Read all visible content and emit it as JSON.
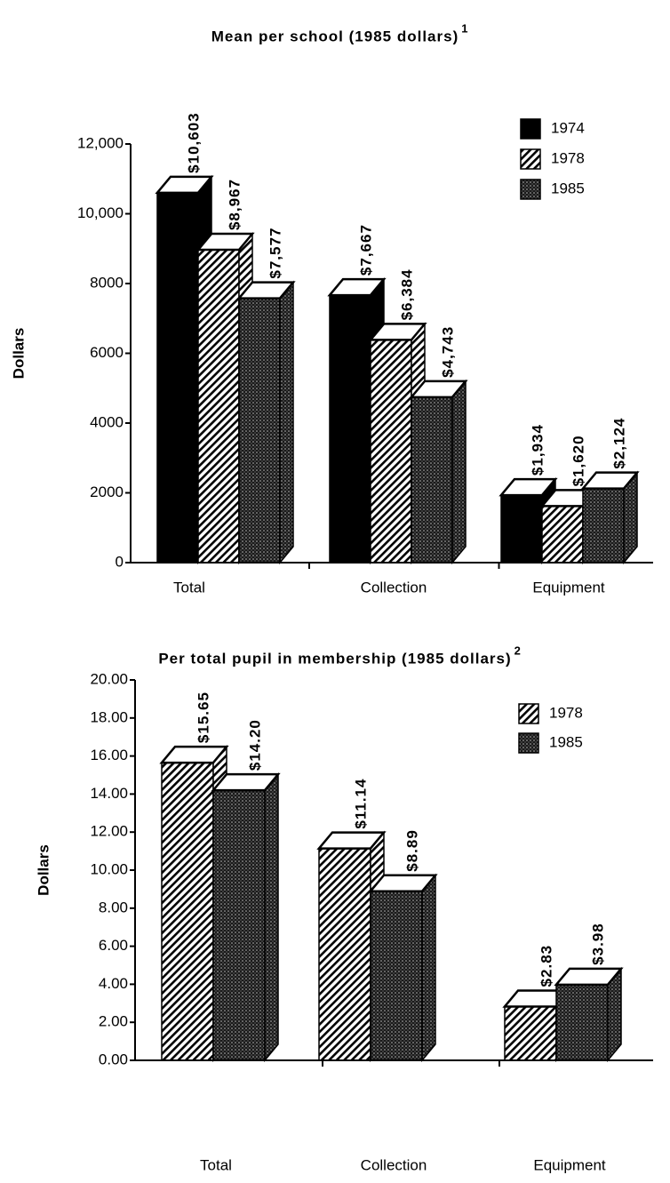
{
  "chart_data": [
    {
      "type": "bar3d",
      "title": "Mean per school (1985 dollars)",
      "title_note": "1",
      "y_label": "Dollars",
      "categories": [
        "Total",
        "Collection",
        "Equipment"
      ],
      "series": [
        {
          "name": "1974",
          "color": "#000000",
          "pattern": "solid",
          "values": [
            10603,
            7667,
            1934
          ],
          "value_labels": [
            "$10,603",
            "$7,667",
            "$1,934"
          ]
        },
        {
          "name": "1978",
          "color": "#000000",
          "pattern": "hatch",
          "values": [
            8967,
            6384,
            1620
          ],
          "value_labels": [
            "$8,967",
            "$6,384",
            "$1,620"
          ]
        },
        {
          "name": "1985",
          "color": "#000000",
          "pattern": "dots",
          "values": [
            7577,
            4743,
            2124
          ],
          "value_labels": [
            "$7,577",
            "$4,743",
            "$2,124"
          ]
        }
      ],
      "ylim": [
        0,
        12000
      ],
      "yticks": [
        0,
        2000,
        4000,
        6000,
        8000,
        {
          "value": 10000,
          "label": "10,000"
        },
        {
          "value": 12000,
          "label": "12,000"
        }
      ],
      "legend": "upper right"
    },
    {
      "type": "bar3d",
      "title": "Per total pupil in membership (1985 dollars)",
      "title_note": "2",
      "y_label": "Dollars",
      "categories": [
        "Total",
        "Collection",
        "Equipment"
      ],
      "series": [
        {
          "name": "1978",
          "color": "#000000",
          "pattern": "hatch",
          "values": [
            15.65,
            11.14,
            2.83
          ],
          "value_labels": [
            "$15.65",
            "$11.14",
            "$2.83"
          ]
        },
        {
          "name": "1985",
          "color": "#000000",
          "pattern": "dots",
          "values": [
            14.2,
            8.89,
            3.98
          ],
          "value_labels": [
            "$14.20",
            "$8.89",
            "$3.98"
          ]
        }
      ],
      "ylim": [
        0,
        20
      ],
      "yticks": [
        {
          "value": 0,
          "label": "0.00"
        },
        {
          "value": 2,
          "label": "2.00"
        },
        {
          "value": 4,
          "label": "4.00"
        },
        {
          "value": 6,
          "label": "6.00"
        },
        {
          "value": 8,
          "label": "8.00"
        },
        {
          "value": 10,
          "label": "10.00"
        },
        {
          "value": 12,
          "label": "12.00"
        },
        {
          "value": 14,
          "label": "14.00"
        },
        {
          "value": 16,
          "label": "16.00"
        },
        {
          "value": 18,
          "label": "18.00"
        },
        {
          "value": 20,
          "label": "20.00"
        }
      ],
      "legend": "upper right"
    }
  ]
}
